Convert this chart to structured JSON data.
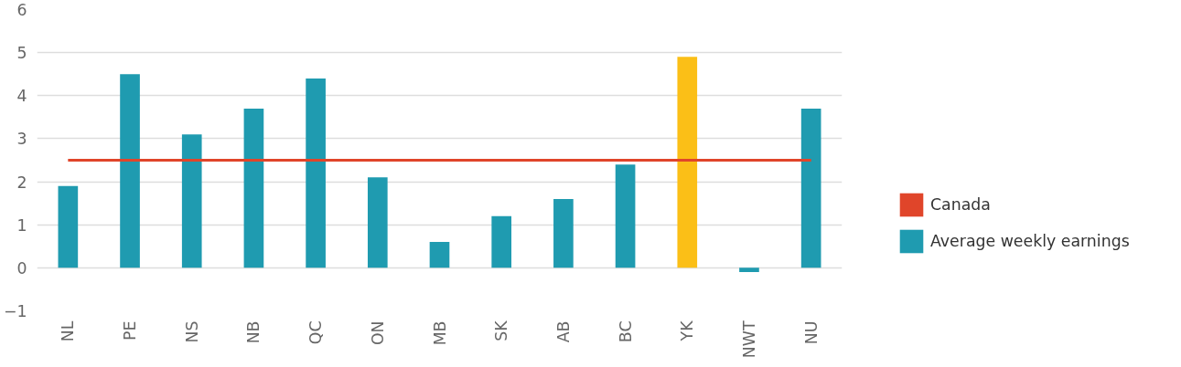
{
  "chart_data": {
    "type": "bar",
    "categories": [
      "NL",
      "PE",
      "NS",
      "NB",
      "QC",
      "ON",
      "MB",
      "SK",
      "AB",
      "BC",
      "YK",
      "NWT",
      "NU"
    ],
    "series": [
      {
        "name": "Canada",
        "type": "line",
        "color": "#e0452a",
        "values": [
          2.5,
          2.5,
          2.5,
          2.5,
          2.5,
          2.5,
          2.5,
          2.5,
          2.5,
          2.5,
          2.5,
          2.5,
          2.5
        ]
      },
      {
        "name": "Average weekly earnings",
        "color": "#1f9bb0",
        "colors": [
          "#1f9bb0",
          "#1f9bb0",
          "#1f9bb0",
          "#1f9bb0",
          "#1f9bb0",
          "#1f9bb0",
          "#1f9bb0",
          "#1f9bb0",
          "#1f9bb0",
          "#1f9bb0",
          "#fbbf17",
          "#1f9bb0",
          "#1f9bb0"
        ],
        "values": [
          1.9,
          4.5,
          3.1,
          3.7,
          4.4,
          2.1,
          0.6,
          1.2,
          1.6,
          2.4,
          4.9,
          -0.1,
          3.7
        ]
      }
    ],
    "ylim": [
      -1,
      6
    ],
    "yticks": [
      -1,
      0,
      1,
      2,
      3,
      4,
      5,
      6
    ],
    "grid": "y",
    "legend": "right"
  }
}
